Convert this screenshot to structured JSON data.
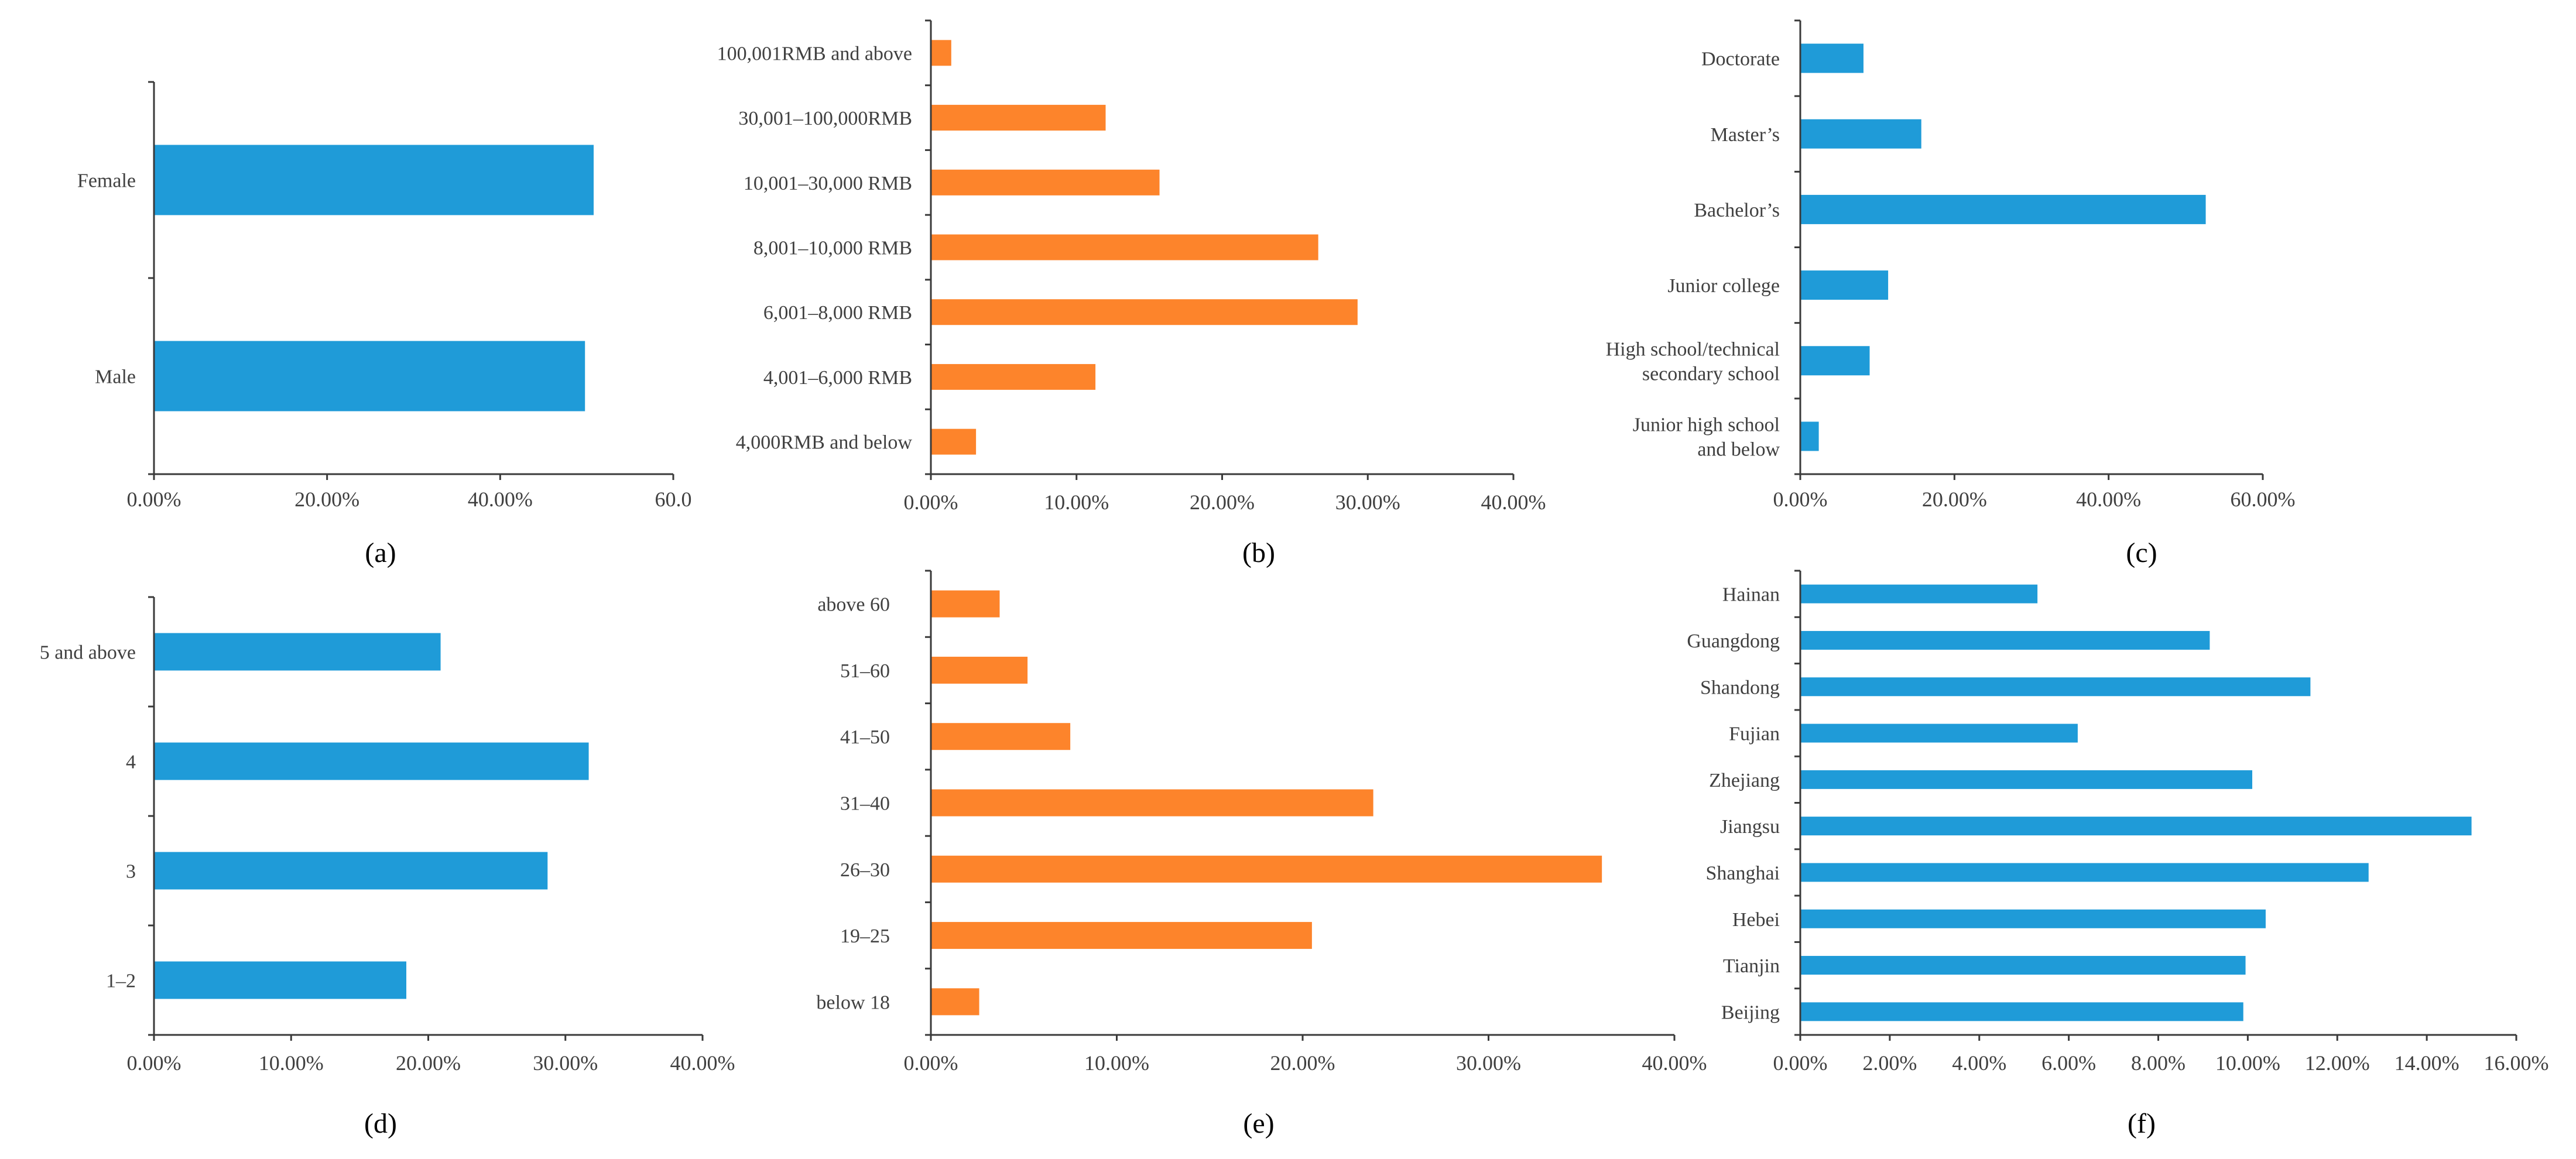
{
  "colors": {
    "blue": "#1f9bd8",
    "orange": "#fd842b",
    "axis": "#3a3a3a"
  },
  "chart_data": [
    {
      "type": "bar",
      "orientation": "horizontal",
      "label": "(a)",
      "color": "blue",
      "categories": [
        "Male",
        "Female"
      ],
      "values": [
        49.8,
        50.8
      ],
      "xlim": [
        0,
        60
      ],
      "ticks": [
        "0.00%",
        "20.00%",
        "40.00%",
        "60.0"
      ]
    },
    {
      "type": "bar",
      "orientation": "horizontal",
      "label": "(b)",
      "color": "orange",
      "categories": [
        "4,000RMB and below",
        "4,001–6,000 RMB",
        "6,001–8,000 RMB",
        "8,001–10,000 RMB",
        "10,001–30,000 RMB",
        "30,001–100,000RMB",
        "100,001RMB  and above"
      ],
      "values": [
        3.1,
        11.3,
        29.3,
        26.6,
        15.7,
        12.0,
        1.4
      ],
      "xlim": [
        0,
        40
      ],
      "ticks": [
        "0.00%",
        "10.00%",
        "20.00%",
        "30.00%",
        "40.00%"
      ]
    },
    {
      "type": "bar",
      "orientation": "horizontal",
      "label": "(c)",
      "color": "blue",
      "categories": [
        [
          "Junior high school",
          "and below"
        ],
        [
          "High school/technical",
          "secondary school"
        ],
        [
          "Junior college"
        ],
        [
          "Bachelor’s"
        ],
        [
          "Master’s"
        ],
        [
          "Doctorate"
        ]
      ],
      "values": [
        2.4,
        9.0,
        11.4,
        52.6,
        15.7,
        8.2
      ],
      "xlim": [
        0,
        60
      ],
      "ticks": [
        "0.00%",
        "20.00%",
        "40.00%",
        "60.00%"
      ]
    },
    {
      "type": "bar",
      "orientation": "horizontal",
      "label": "(d)",
      "color": "blue",
      "categories": [
        "1–2",
        "3",
        "4",
        "5 and above"
      ],
      "values": [
        18.4,
        28.7,
        31.7,
        20.9
      ],
      "xlim": [
        0,
        40
      ],
      "ticks": [
        "0.00%",
        "10.00%",
        "20.00%",
        "30.00%",
        "40.00%"
      ]
    },
    {
      "type": "bar",
      "orientation": "horizontal",
      "label": "(e)",
      "color": "orange",
      "categories": [
        "below 18",
        "19–25",
        "26–30",
        "31–40",
        "41–50",
        "51–60",
        "above 60"
      ],
      "values": [
        2.6,
        20.5,
        36.1,
        23.8,
        7.5,
        5.2,
        3.7
      ],
      "xlim": [
        0,
        40
      ],
      "ticks": [
        "0.00%",
        "10.00%",
        "20.00%",
        "30.00%",
        "40.00%"
      ]
    },
    {
      "type": "bar",
      "orientation": "horizontal",
      "label": "(f)",
      "color": "blue",
      "categories": [
        "Beijing",
        "Tianjin",
        "Hebei",
        "Shanghai",
        "Jiangsu",
        "Zhejiang",
        "Fujian",
        "Shandong",
        "Guangdong",
        "Hainan"
      ],
      "values": [
        9.9,
        9.95,
        10.4,
        12.7,
        15.0,
        10.1,
        6.2,
        11.4,
        9.15,
        5.3
      ],
      "xlim": [
        0,
        16
      ],
      "ticks": [
        "0.00%",
        "2.00%",
        "4.00%",
        "6.00%",
        "8.00%",
        "10.00%",
        "12.00%",
        "14.00%",
        "16.00%"
      ]
    }
  ]
}
